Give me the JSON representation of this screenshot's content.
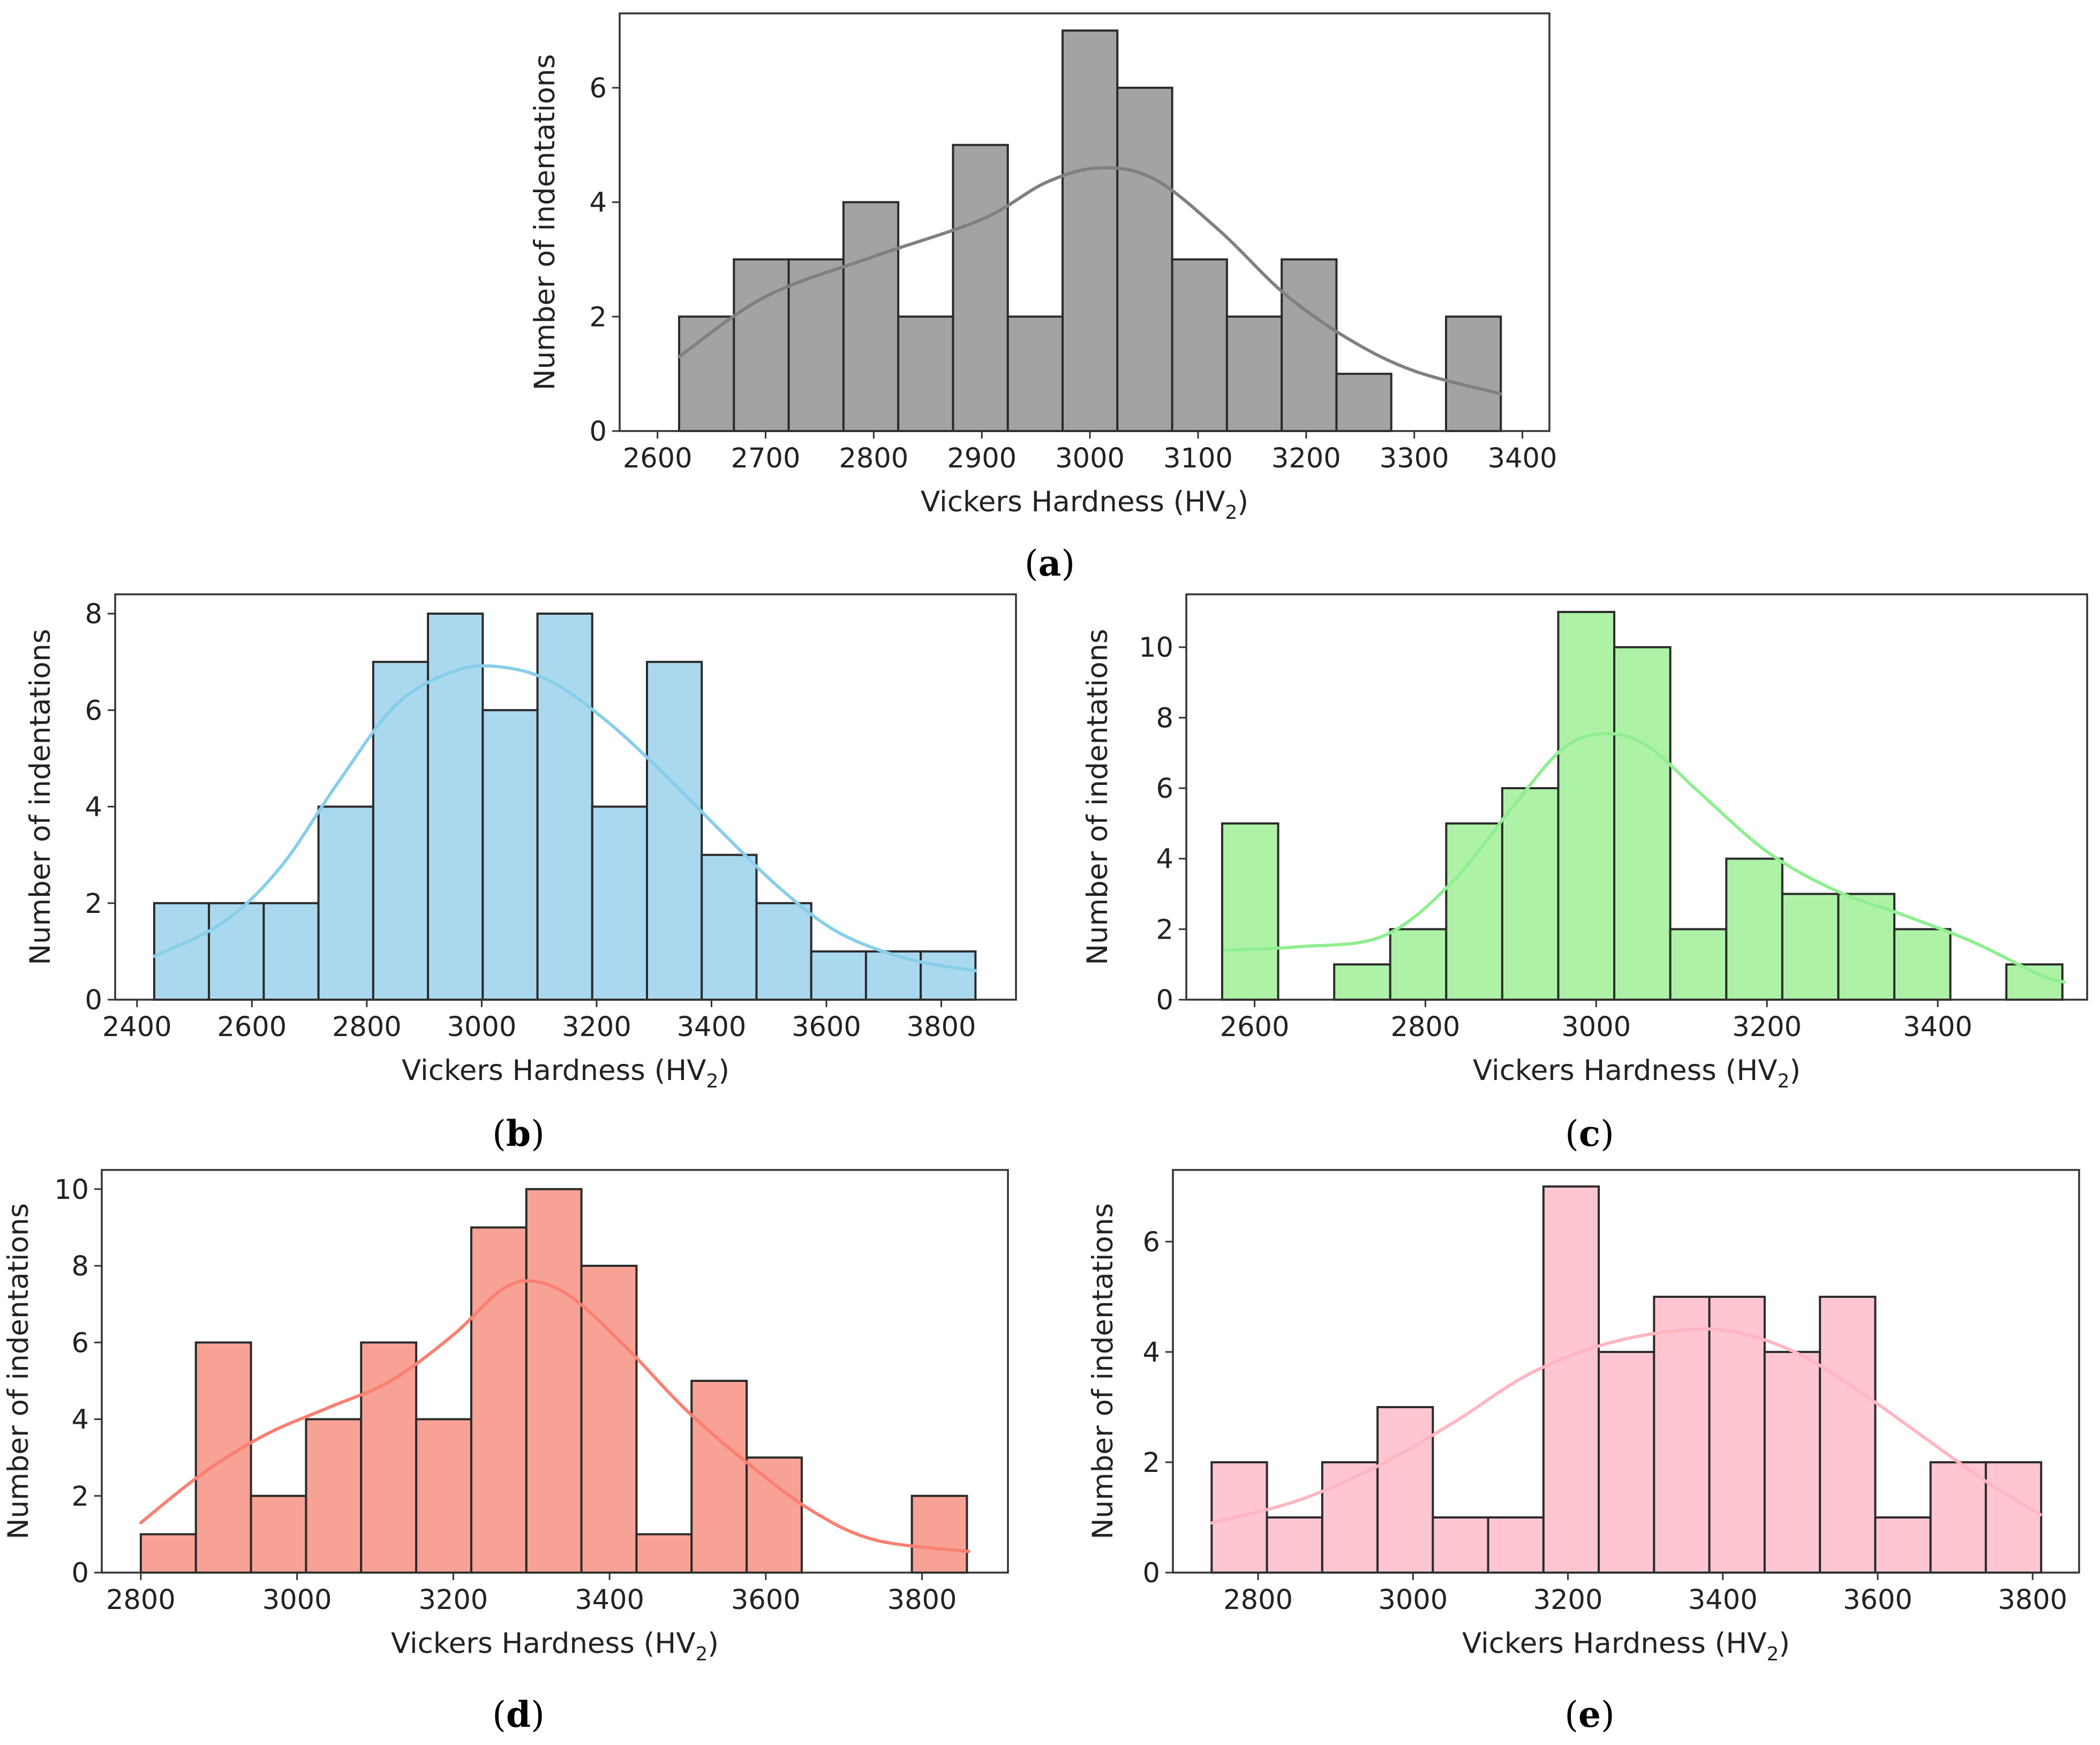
{
  "chart_data": [
    {
      "id": "a",
      "type": "bar",
      "panel_label": "a",
      "xlabel": "Vickers Hardness (HV",
      "xlabel_sub": "2",
      "xlabel_close": ")",
      "ylabel": "Number of indentations",
      "xlim": [
        2565,
        3425
      ],
      "ylim": [
        0,
        7.3
      ],
      "xticks": [
        2600,
        2700,
        2800,
        2900,
        3000,
        3100,
        3200,
        3300,
        3400
      ],
      "yticks": [
        0,
        2,
        4,
        6
      ],
      "bin_start": 2620,
      "bin_width": 50.67,
      "counts": [
        2,
        3,
        3,
        4,
        2,
        5,
        2,
        7,
        6,
        3,
        2,
        3,
        1,
        0,
        2
      ],
      "kde": [
        [
          2620,
          1.3
        ],
        [
          2700,
          2.35
        ],
        [
          2800,
          3.05
        ],
        [
          2900,
          3.7
        ],
        [
          2960,
          4.35
        ],
        [
          3010,
          4.6
        ],
        [
          3060,
          4.4
        ],
        [
          3120,
          3.5
        ],
        [
          3180,
          2.4
        ],
        [
          3240,
          1.6
        ],
        [
          3300,
          1.05
        ],
        [
          3380,
          0.65
        ]
      ],
      "color": "#a3a3a3",
      "kde_color": "#808080"
    },
    {
      "id": "b",
      "type": "bar",
      "panel_label": "b",
      "xlabel": "Vickers Hardness (HV",
      "xlabel_sub": "2",
      "xlabel_close": ")",
      "ylabel": "Number of indentations",
      "xlim": [
        2362,
        3930
      ],
      "ylim": [
        0,
        8.4
      ],
      "xticks": [
        2400,
        2600,
        2800,
        3000,
        3200,
        3400,
        3600,
        3800
      ],
      "yticks": [
        0,
        2,
        4,
        6,
        8
      ],
      "bin_start": 2430,
      "bin_width": 95.3,
      "counts": [
        2,
        2,
        2,
        4,
        7,
        8,
        6,
        8,
        4,
        7,
        3,
        2,
        1,
        1,
        1
      ],
      "kde": [
        [
          2430,
          0.9
        ],
        [
          2550,
          1.6
        ],
        [
          2650,
          2.75
        ],
        [
          2750,
          4.5
        ],
        [
          2850,
          6.1
        ],
        [
          2950,
          6.8
        ],
        [
          3030,
          6.9
        ],
        [
          3120,
          6.6
        ],
        [
          3220,
          5.75
        ],
        [
          3320,
          4.65
        ],
        [
          3420,
          3.45
        ],
        [
          3520,
          2.3
        ],
        [
          3620,
          1.4
        ],
        [
          3740,
          0.85
        ],
        [
          3860,
          0.6
        ]
      ],
      "color": "#aad9ef",
      "kde_color": "#87ceeb"
    },
    {
      "id": "c",
      "type": "bar",
      "panel_label": "c",
      "xlabel": "Vickers Hardness (HV",
      "xlabel_sub": "2",
      "xlabel_close": ")",
      "ylabel": "Number of indentations",
      "xlim": [
        2520,
        3575
      ],
      "ylim": [
        0,
        11.5
      ],
      "xticks": [
        2600,
        2800,
        3000,
        3200,
        3400
      ],
      "yticks": [
        0,
        2,
        4,
        6,
        8,
        10
      ],
      "bin_start": 2562,
      "bin_width": 65.6,
      "counts": [
        5,
        0,
        1,
        2,
        5,
        6,
        11,
        10,
        2,
        4,
        3,
        3,
        2,
        0,
        1
      ],
      "kde": [
        [
          2565,
          1.4
        ],
        [
          2650,
          1.5
        ],
        [
          2750,
          1.8
        ],
        [
          2830,
          3.3
        ],
        [
          2900,
          5.4
        ],
        [
          2960,
          7.1
        ],
        [
          3010,
          7.55
        ],
        [
          3060,
          7.2
        ],
        [
          3120,
          5.9
        ],
        [
          3200,
          4.2
        ],
        [
          3280,
          3.1
        ],
        [
          3360,
          2.4
        ],
        [
          3440,
          1.65
        ],
        [
          3520,
          0.7
        ],
        [
          3548,
          0.5
        ]
      ],
      "color": "#aef2a8",
      "kde_color": "#90ee90"
    },
    {
      "id": "d",
      "type": "bar",
      "panel_label": "d",
      "xlabel": "Vickers Hardness (HV",
      "xlabel_sub": "2",
      "xlabel_close": ")",
      "ylabel": "Number of indentations",
      "xlim": [
        2750,
        3910
      ],
      "ylim": [
        0,
        10.5
      ],
      "xticks": [
        2800,
        3000,
        3200,
        3400,
        3600,
        3800
      ],
      "yticks": [
        0,
        2,
        4,
        6,
        8,
        10
      ],
      "bin_start": 2800,
      "bin_width": 70.5,
      "counts": [
        1,
        6,
        2,
        4,
        6,
        4,
        9,
        10,
        8,
        1,
        5,
        3,
        0,
        0,
        2
      ],
      "kde": [
        [
          2800,
          1.3
        ],
        [
          2880,
          2.6
        ],
        [
          2960,
          3.6
        ],
        [
          3040,
          4.3
        ],
        [
          3120,
          5.0
        ],
        [
          3200,
          6.2
        ],
        [
          3260,
          7.35
        ],
        [
          3300,
          7.6
        ],
        [
          3350,
          7.2
        ],
        [
          3420,
          5.9
        ],
        [
          3500,
          4.2
        ],
        [
          3580,
          2.8
        ],
        [
          3660,
          1.6
        ],
        [
          3740,
          0.85
        ],
        [
          3860,
          0.55
        ]
      ],
      "color": "#f8a295",
      "kde_color": "#fa8072"
    },
    {
      "id": "e",
      "type": "bar",
      "panel_label": "e",
      "xlabel": "Vickers Hardness (HV",
      "xlabel_sub": "2",
      "xlabel_close": ")",
      "ylabel": "Number of indentations",
      "xlim": [
        2690,
        3860
      ],
      "ylim": [
        0,
        7.3
      ],
      "xticks": [
        2800,
        3000,
        3200,
        3400,
        3600,
        3800
      ],
      "yticks": [
        0,
        2,
        4,
        6
      ],
      "bin_start": 2740,
      "bin_width": 71.4,
      "counts": [
        2,
        1,
        2,
        3,
        1,
        1,
        7,
        4,
        5,
        5,
        4,
        5,
        1,
        2,
        2
      ],
      "kde": [
        [
          2740,
          0.9
        ],
        [
          2850,
          1.3
        ],
        [
          2950,
          1.9
        ],
        [
          3050,
          2.7
        ],
        [
          3150,
          3.6
        ],
        [
          3250,
          4.15
        ],
        [
          3350,
          4.4
        ],
        [
          3420,
          4.35
        ],
        [
          3500,
          3.95
        ],
        [
          3580,
          3.25
        ],
        [
          3660,
          2.45
        ],
        [
          3740,
          1.65
        ],
        [
          3810,
          1.05
        ]
      ],
      "color": "#ffc6d2",
      "kde_color": "#ffb6c1"
    }
  ]
}
